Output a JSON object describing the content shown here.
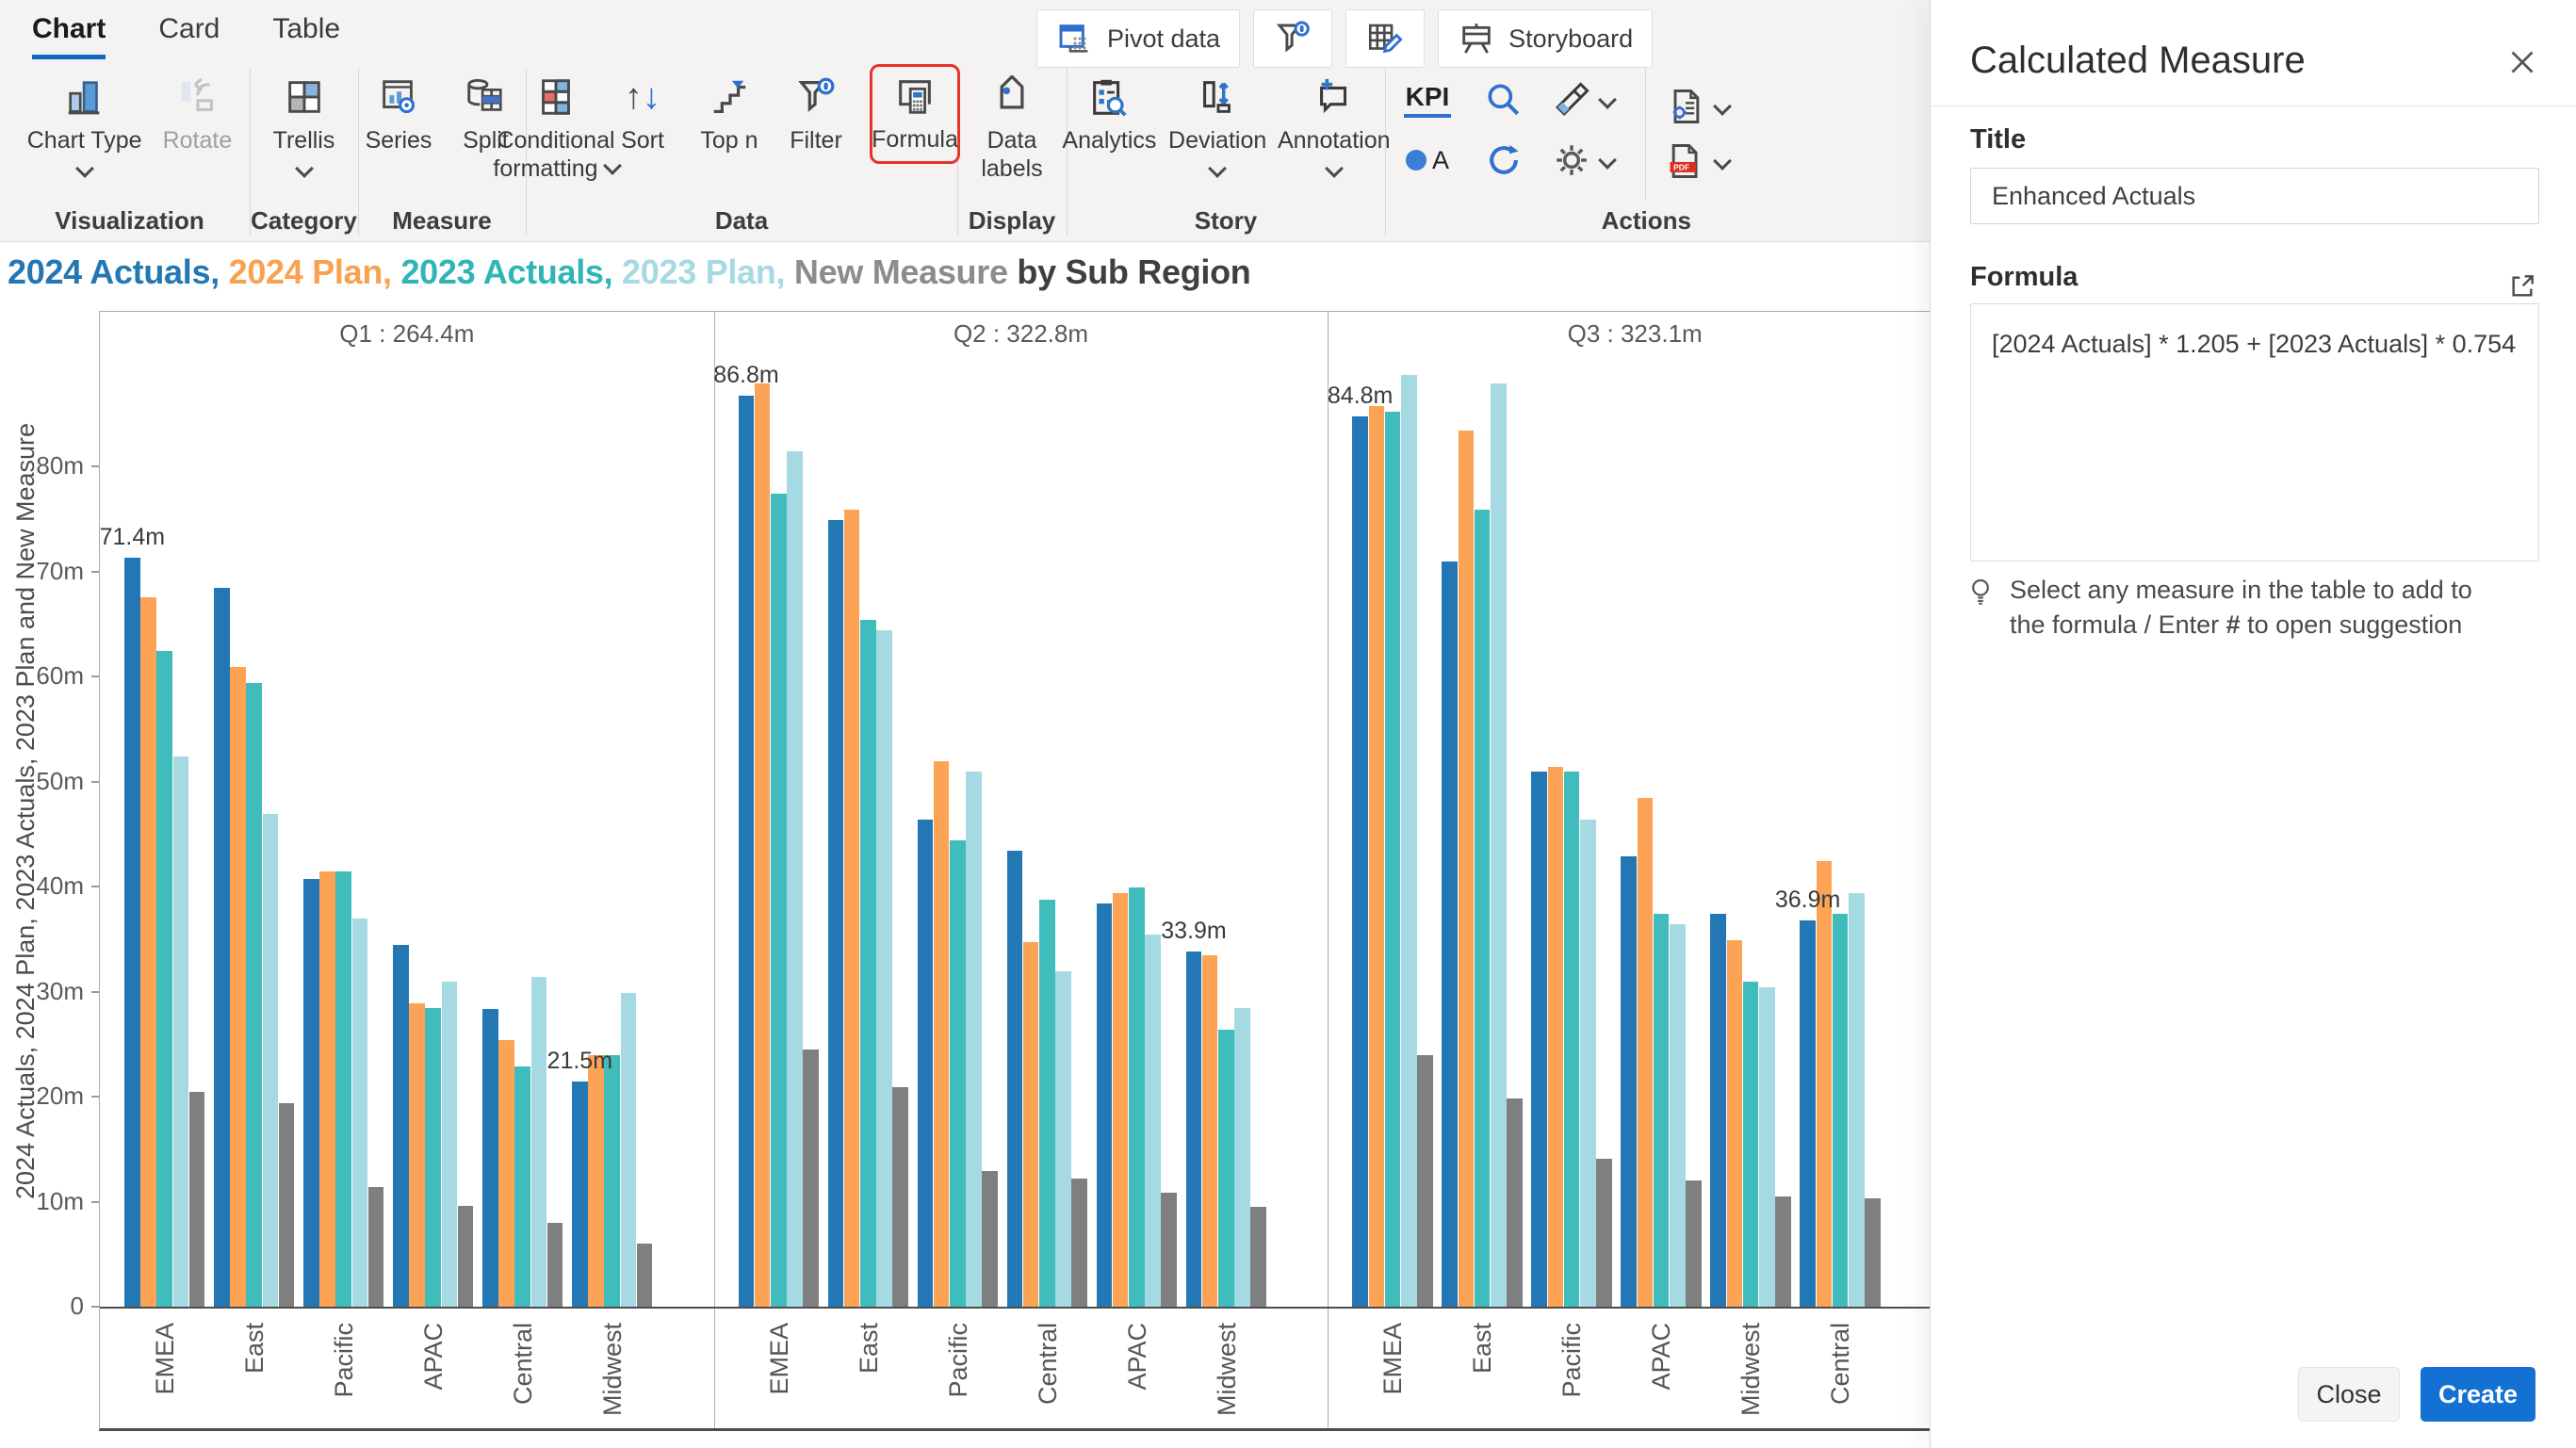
{
  "ribbon": {
    "tabs": [
      "Chart",
      "Card",
      "Table"
    ],
    "quick": {
      "pivot_data": "Pivot data",
      "storyboard": "Storyboard"
    },
    "items": {
      "chart_type": "Chart Type",
      "rotate": "Rotate",
      "trellis": "Trellis",
      "series": "Series",
      "split": "Split",
      "conditional_formatting": "Conditional formatting",
      "sort": "Sort",
      "top_n": "Top n",
      "filter": "Filter",
      "formula": "Formula",
      "data_labels": "Data labels",
      "analytics": "Analytics",
      "deviation": "Deviation",
      "annotation": "Annotation",
      "kpi": "KPI",
      "a_label": "A",
      "pdf_label": "PDF"
    },
    "sections": {
      "visualization": "Visualization",
      "category": "Category",
      "measure": "Measure",
      "data": "Data",
      "display": "Display",
      "story": "Story",
      "actions": "Actions"
    }
  },
  "chart": {
    "title_segments": [
      {
        "text": "2024 Actuals, ",
        "color": "#2277B4"
      },
      {
        "text": "2024 Plan, ",
        "color": "#F9A14F"
      },
      {
        "text": "2023 Actuals, ",
        "color": "#2FB5B5"
      },
      {
        "text": "2023 Plan, ",
        "color": "#A5DAE2"
      },
      {
        "text": "New Measure ",
        "color": "#8C8C8C"
      },
      {
        "text": "by Sub Region",
        "color": "#3F3F3F"
      }
    ]
  },
  "chart_data": {
    "type": "bar",
    "title": "2024 Actuals, 2024 Plan, 2023 Actuals, 2023 Plan, New Measure by Sub Region",
    "ylabel": "2024 Actuals, 2024 Plan, 2023 Actuals, 2023 Plan and New Measure",
    "ylim": [
      0,
      90
    ],
    "grid": false,
    "legend_position": "none",
    "yticks": [
      {
        "v": 0,
        "label": "0"
      },
      {
        "v": 10,
        "label": "10m"
      },
      {
        "v": 20,
        "label": "20m"
      },
      {
        "v": 30,
        "label": "30m"
      },
      {
        "v": 40,
        "label": "40m"
      },
      {
        "v": 50,
        "label": "50m"
      },
      {
        "v": 60,
        "label": "60m"
      },
      {
        "v": 70,
        "label": "70m"
      },
      {
        "v": 80,
        "label": "80m"
      }
    ],
    "series_names": [
      "2024 Actuals",
      "2024 Plan",
      "2023 Actuals",
      "2023 Plan",
      "New Measure"
    ],
    "series_colors": [
      "#2277B4",
      "#FCA355",
      "#41BCBD",
      "#A5DAE2",
      "#7F7F7F"
    ],
    "panels": [
      {
        "header": "Q1 :  264.4m",
        "categories": [
          "EMEA",
          "East",
          "Pacific",
          "APAC",
          "Central",
          "Midwest"
        ],
        "series": [
          {
            "name": "2024 Actuals",
            "values": [
              71.4,
              68.5,
              40.8,
              34.5,
              28.4,
              21.5
            ]
          },
          {
            "name": "2024 Plan",
            "values": [
              67.6,
              61.0,
              41.5,
              29.0,
              25.5,
              24.0
            ]
          },
          {
            "name": "2023 Actuals",
            "values": [
              62.5,
              59.5,
              41.5,
              28.5,
              23.0,
              24.0
            ]
          },
          {
            "name": "2023 Plan",
            "values": [
              52.5,
              47.0,
              37.0,
              31.0,
              31.5,
              30.0
            ]
          },
          {
            "name": "New Measure",
            "values": [
              20.5,
              19.5,
              11.5,
              9.7,
              8.1,
              6.1
            ]
          }
        ],
        "bar_labels": [
          {
            "category_index": 0,
            "series_index": 0,
            "text": "71.4m"
          },
          {
            "category_index": 5,
            "series_index": 0,
            "text": "21.5m"
          }
        ]
      },
      {
        "header": "Q2 :  322.8m",
        "categories": [
          "EMEA",
          "East",
          "Pacific",
          "Central",
          "APAC",
          "Midwest"
        ],
        "series": [
          {
            "name": "2024 Actuals",
            "values": [
              86.8,
              75.0,
              46.5,
              43.5,
              38.5,
              33.9
            ]
          },
          {
            "name": "2024 Plan",
            "values": [
              88.0,
              76.0,
              52.0,
              34.8,
              39.5,
              33.5
            ]
          },
          {
            "name": "2023 Actuals",
            "values": [
              77.5,
              65.5,
              44.5,
              38.8,
              40.0,
              26.5
            ]
          },
          {
            "name": "2023 Plan",
            "values": [
              81.5,
              64.5,
              51.0,
              32.0,
              35.5,
              28.5
            ]
          },
          {
            "name": "New Measure",
            "values": [
              24.6,
              21.0,
              13.0,
              12.3,
              10.9,
              9.6
            ]
          }
        ],
        "bar_labels": [
          {
            "category_index": 0,
            "series_index": 0,
            "text": "86.8m"
          },
          {
            "category_index": 5,
            "series_index": 0,
            "text": "33.9m"
          }
        ]
      },
      {
        "header": "Q3 :  323.1m",
        "categories": [
          "EMEA",
          "East",
          "Pacific",
          "APAC",
          "Midwest",
          "Central"
        ],
        "series": [
          {
            "name": "2024 Actuals",
            "values": [
              84.8,
              71.0,
              51.0,
              43.0,
              37.5,
              36.9
            ]
          },
          {
            "name": "2024 Plan",
            "values": [
              85.8,
              83.5,
              51.5,
              48.5,
              35.0,
              42.5
            ]
          },
          {
            "name": "2023 Actuals",
            "values": [
              85.3,
              76.0,
              51.0,
              37.5,
              31.0,
              37.5
            ]
          },
          {
            "name": "2023 Plan",
            "values": [
              88.8,
              88.0,
              46.5,
              36.5,
              30.5,
              39.5
            ]
          },
          {
            "name": "New Measure",
            "values": [
              24.0,
              19.9,
              14.2,
              12.1,
              10.6,
              10.4
            ]
          }
        ],
        "bar_labels": [
          {
            "category_index": 0,
            "series_index": 0,
            "text": "84.8m"
          },
          {
            "category_index": 5,
            "series_index": 0,
            "text": "36.9m"
          }
        ]
      }
    ]
  },
  "panel": {
    "title": "Calculated Measure",
    "title_label": "Title",
    "title_value": "Enhanced Actuals",
    "formula_label": "Formula",
    "formula_value": "[2024 Actuals] * 1.205 + [2023 Actuals] * 0.754",
    "hint_prefix": "Select any measure in the table to add to the formula / Enter ",
    "hint_hash": "#",
    "hint_suffix": " to open suggestion",
    "close_label": "Close",
    "create_label": "Create"
  }
}
